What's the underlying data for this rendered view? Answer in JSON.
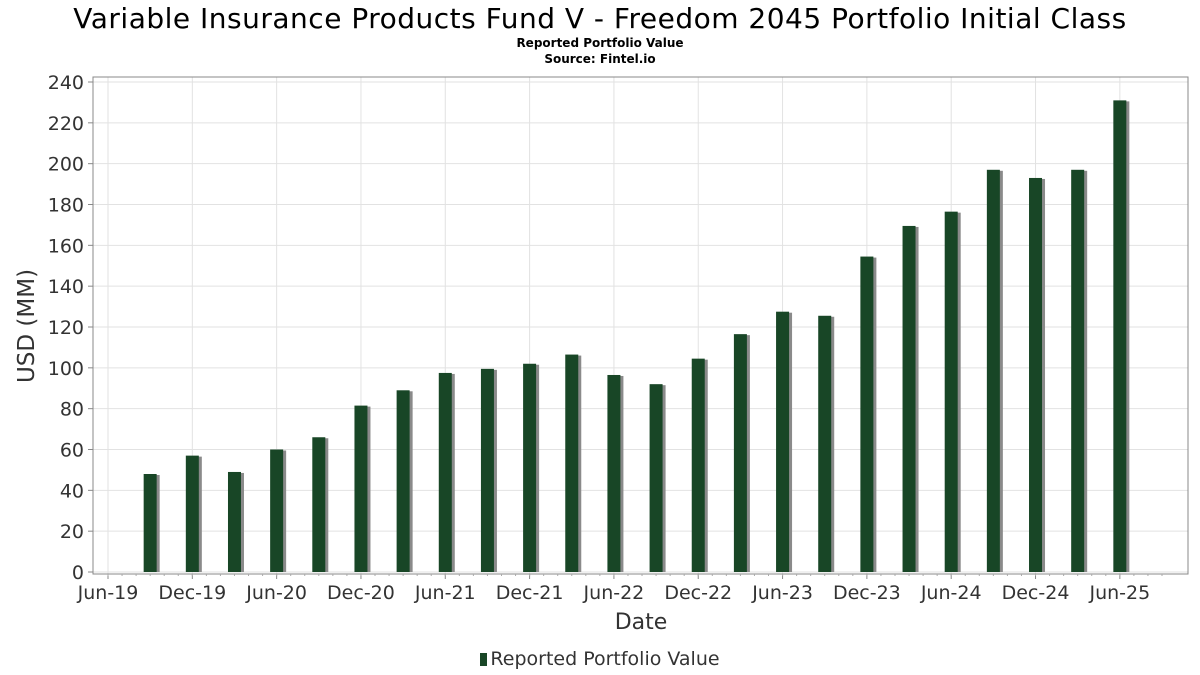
{
  "chart_data": {
    "type": "bar",
    "title": "Variable Insurance Products Fund V - Freedom 2045 Portfolio Initial Class",
    "subtitle": "Reported Portfolio Value",
    "source": "Source: Fintel.io",
    "xlabel": "Date",
    "ylabel": "USD (MM)",
    "ylim": [
      0,
      240
    ],
    "yticks": [
      0,
      20,
      40,
      60,
      80,
      100,
      120,
      140,
      160,
      180,
      200,
      220,
      240
    ],
    "x_axis": {
      "start": "2019-06",
      "end": "2025-09",
      "ticks": [
        "Jun-19",
        "Dec-19",
        "Jun-20",
        "Dec-20",
        "Jun-21",
        "Dec-21",
        "Jun-22",
        "Dec-22",
        "Jun-23",
        "Dec-23",
        "Jun-24",
        "Dec-24",
        "Jun-25"
      ]
    },
    "grid": true,
    "legend_position": "bottom",
    "bar_color": "#184626",
    "shadow_color": "#8a8a8a",
    "series": [
      {
        "name": "Reported Portfolio Value",
        "points": [
          {
            "date": "2019-09",
            "value": 48
          },
          {
            "date": "2019-12",
            "value": 57
          },
          {
            "date": "2020-03",
            "value": 49
          },
          {
            "date": "2020-06",
            "value": 60
          },
          {
            "date": "2020-09",
            "value": 66
          },
          {
            "date": "2020-12",
            "value": 81.5
          },
          {
            "date": "2021-03",
            "value": 89
          },
          {
            "date": "2021-06",
            "value": 97.5
          },
          {
            "date": "2021-09",
            "value": 99.5
          },
          {
            "date": "2021-12",
            "value": 102
          },
          {
            "date": "2022-03",
            "value": 106.5
          },
          {
            "date": "2022-06",
            "value": 96.5
          },
          {
            "date": "2022-09",
            "value": 92
          },
          {
            "date": "2022-12",
            "value": 104.5
          },
          {
            "date": "2023-03",
            "value": 116.5
          },
          {
            "date": "2023-06",
            "value": 127.5
          },
          {
            "date": "2023-09",
            "value": 125.5
          },
          {
            "date": "2023-12",
            "value": 154.5
          },
          {
            "date": "2024-03",
            "value": 169.5
          },
          {
            "date": "2024-06",
            "value": 176.5
          },
          {
            "date": "2024-09",
            "value": 197
          },
          {
            "date": "2024-12",
            "value": 193
          },
          {
            "date": "2025-03",
            "value": 197
          },
          {
            "date": "2025-06",
            "value": 231
          }
        ]
      }
    ]
  },
  "legend": {
    "label": "Reported Portfolio Value"
  }
}
